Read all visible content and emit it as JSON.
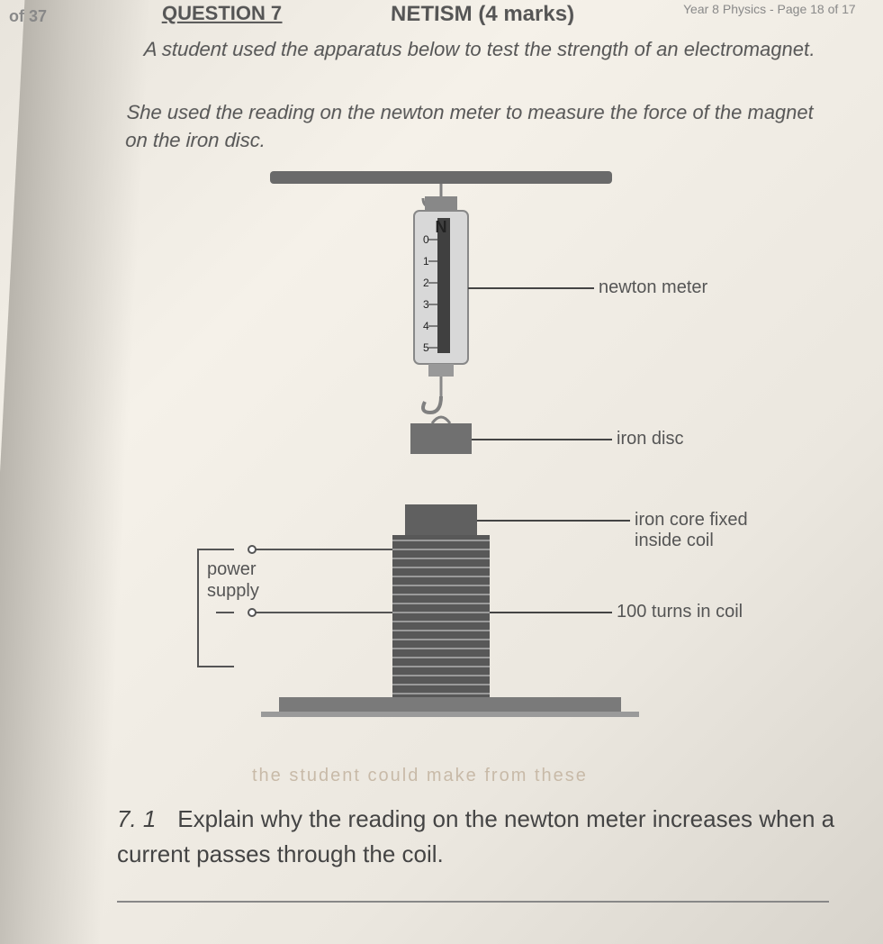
{
  "page_number": "of 37",
  "header": {
    "question_label": "QUESTION 7",
    "title_suffix": "NETISM (4 marks)",
    "page_ref": "Year 8 Physics - Page 18 of 17"
  },
  "paragraph1": "A student used the apparatus below to test the strength of an electromagnet.",
  "paragraph2": "She used the reading on the newton meter to measure the force of the magnet on the iron disc.",
  "diagram": {
    "labels": {
      "newton_meter": "newton meter",
      "iron_disc": "iron disc",
      "iron_core": "iron core fixed inside coil",
      "power_supply": "power supply",
      "turns": "100 turns in coil"
    },
    "meter": {
      "unit": "N",
      "ticks": [
        "0",
        "1",
        "2",
        "3",
        "4",
        "5"
      ]
    },
    "colors": {
      "bar": "#6a6a6a",
      "meter_body": "#d8d8d8",
      "meter_scale": "#404040",
      "hook": "#808080",
      "disc": "#707070",
      "coil_dark": "#585858",
      "coil_light": "#9a9a9a",
      "core": "#606060",
      "wire": "#555",
      "base": "#7a7a7a",
      "label_line": "#444"
    }
  },
  "question_7_1": {
    "number": "7. 1",
    "text": "Explain why the reading on the newton meter increases when a current passes through the coil."
  },
  "faint": "the student could make                        from these"
}
